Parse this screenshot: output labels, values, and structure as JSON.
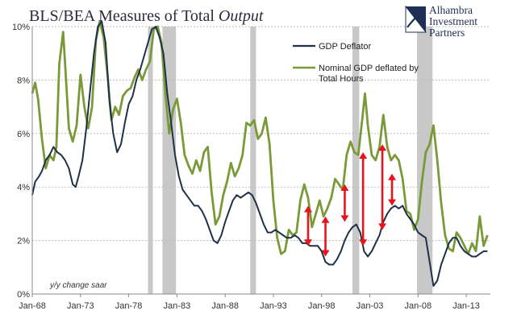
{
  "chart_data": {
    "type": "line",
    "title_main": "BLS/BEA Measures of Total ",
    "title_emph": "Output",
    "xlabel": "",
    "ylabel": "",
    "note": "y/y change saar",
    "ylim": [
      0,
      10
    ],
    "yticks": [
      "0%",
      "2%",
      "4%",
      "6%",
      "8%",
      "10%"
    ],
    "xlim": [
      1968.0,
      2015.5
    ],
    "xticks": [
      {
        "label": "Jan-68",
        "x": 1968
      },
      {
        "label": "Jan-73",
        "x": 1973
      },
      {
        "label": "Jan-78",
        "x": 1978
      },
      {
        "label": "Jan-83",
        "x": 1983
      },
      {
        "label": "Jan-88",
        "x": 1988
      },
      {
        "label": "Jan-93",
        "x": 1993
      },
      {
        "label": "Jan-98",
        "x": 1998
      },
      {
        "label": "Jan-03",
        "x": 2003
      },
      {
        "label": "Jan-08",
        "x": 2008
      },
      {
        "label": "Jan-13",
        "x": 2013
      }
    ],
    "grid": true,
    "legend_position": "top-right",
    "recessions": [
      [
        1980.0,
        1980.5
      ],
      [
        1981.5,
        1982.9
      ],
      [
        1990.6,
        1991.2
      ],
      [
        2001.2,
        2001.9
      ],
      [
        2007.9,
        2009.5
      ]
    ],
    "series": [
      {
        "name": "GDP Deflator",
        "color": "#1f3049",
        "points": [
          [
            1968.0,
            3.7
          ],
          [
            1968.3,
            4.2
          ],
          [
            1968.7,
            4.4
          ],
          [
            1969.0,
            4.6
          ],
          [
            1969.4,
            5.0
          ],
          [
            1969.8,
            5.2
          ],
          [
            1970.2,
            5.5
          ],
          [
            1970.6,
            5.3
          ],
          [
            1971.0,
            5.2
          ],
          [
            1971.4,
            5.0
          ],
          [
            1971.8,
            4.7
          ],
          [
            1972.2,
            4.1
          ],
          [
            1972.5,
            4.0
          ],
          [
            1972.8,
            4.4
          ],
          [
            1973.2,
            5.0
          ],
          [
            1973.6,
            6.2
          ],
          [
            1974.0,
            7.6
          ],
          [
            1974.4,
            9.0
          ],
          [
            1974.8,
            10.0
          ],
          [
            1975.2,
            10.2
          ],
          [
            1975.6,
            9.4
          ],
          [
            1976.0,
            7.2
          ],
          [
            1976.4,
            6.0
          ],
          [
            1976.8,
            5.3
          ],
          [
            1977.2,
            5.6
          ],
          [
            1977.6,
            6.4
          ],
          [
            1978.0,
            7.1
          ],
          [
            1978.4,
            7.4
          ],
          [
            1978.8,
            8.0
          ],
          [
            1979.2,
            8.4
          ],
          [
            1979.6,
            8.9
          ],
          [
            1980.0,
            9.4
          ],
          [
            1980.4,
            9.9
          ],
          [
            1980.8,
            10.0
          ],
          [
            1981.2,
            9.6
          ],
          [
            1981.6,
            9.0
          ],
          [
            1982.0,
            7.5
          ],
          [
            1982.4,
            6.4
          ],
          [
            1982.8,
            5.2
          ],
          [
            1983.2,
            4.4
          ],
          [
            1983.6,
            3.9
          ],
          [
            1984.0,
            3.7
          ],
          [
            1984.4,
            3.5
          ],
          [
            1984.8,
            3.3
          ],
          [
            1985.2,
            3.3
          ],
          [
            1985.6,
            3.1
          ],
          [
            1986.0,
            2.8
          ],
          [
            1986.4,
            2.4
          ],
          [
            1986.8,
            2.0
          ],
          [
            1987.2,
            1.9
          ],
          [
            1987.6,
            2.2
          ],
          [
            1988.0,
            2.7
          ],
          [
            1988.4,
            3.1
          ],
          [
            1988.8,
            3.5
          ],
          [
            1989.2,
            3.7
          ],
          [
            1989.6,
            3.6
          ],
          [
            1990.0,
            3.7
          ],
          [
            1990.4,
            3.8
          ],
          [
            1990.8,
            3.7
          ],
          [
            1991.2,
            3.4
          ],
          [
            1991.6,
            3.0
          ],
          [
            1992.0,
            2.6
          ],
          [
            1992.4,
            2.3
          ],
          [
            1992.8,
            2.3
          ],
          [
            1993.2,
            2.4
          ],
          [
            1993.6,
            2.3
          ],
          [
            1994.0,
            2.2
          ],
          [
            1994.4,
            2.1
          ],
          [
            1994.8,
            2.1
          ],
          [
            1995.2,
            2.2
          ],
          [
            1995.6,
            2.1
          ],
          [
            1996.0,
            1.9
          ],
          [
            1996.4,
            1.9
          ],
          [
            1996.8,
            1.8
          ],
          [
            1997.2,
            1.8
          ],
          [
            1997.6,
            1.8
          ],
          [
            1998.0,
            1.6
          ],
          [
            1998.4,
            1.2
          ],
          [
            1998.8,
            1.1
          ],
          [
            1999.2,
            1.1
          ],
          [
            1999.6,
            1.3
          ],
          [
            2000.0,
            1.6
          ],
          [
            2000.4,
            2.0
          ],
          [
            2000.8,
            2.3
          ],
          [
            2001.2,
            2.5
          ],
          [
            2001.6,
            2.6
          ],
          [
            2002.0,
            2.3
          ],
          [
            2002.4,
            1.6
          ],
          [
            2002.8,
            1.4
          ],
          [
            2003.2,
            1.6
          ],
          [
            2003.6,
            1.9
          ],
          [
            2004.0,
            2.2
          ],
          [
            2004.4,
            2.7
          ],
          [
            2004.8,
            3.0
          ],
          [
            2005.2,
            3.2
          ],
          [
            2005.6,
            3.3
          ],
          [
            2006.0,
            3.2
          ],
          [
            2006.4,
            3.3
          ],
          [
            2006.8,
            3.0
          ],
          [
            2007.2,
            2.8
          ],
          [
            2007.6,
            2.6
          ],
          [
            2008.0,
            2.3
          ],
          [
            2008.4,
            2.2
          ],
          [
            2008.8,
            2.1
          ],
          [
            2009.2,
            1.2
          ],
          [
            2009.6,
            0.3
          ],
          [
            2010.0,
            0.5
          ],
          [
            2010.4,
            1.1
          ],
          [
            2010.8,
            1.5
          ],
          [
            2011.2,
            1.9
          ],
          [
            2011.6,
            2.1
          ],
          [
            2012.0,
            2.1
          ],
          [
            2012.4,
            1.8
          ],
          [
            2012.8,
            1.6
          ],
          [
            2013.2,
            1.5
          ],
          [
            2013.6,
            1.4
          ],
          [
            2014.0,
            1.4
          ],
          [
            2014.4,
            1.5
          ],
          [
            2014.8,
            1.6
          ],
          [
            2015.2,
            1.6
          ]
        ]
      },
      {
        "name": "Nominal GDP deflated by Total Hours",
        "color": "#7a9a3a",
        "points": [
          [
            1968.0,
            7.5
          ],
          [
            1968.3,
            7.9
          ],
          [
            1968.6,
            7.3
          ],
          [
            1969.0,
            5.8
          ],
          [
            1969.4,
            4.7
          ],
          [
            1969.8,
            5.2
          ],
          [
            1970.2,
            5.0
          ],
          [
            1970.5,
            5.5
          ],
          [
            1970.8,
            8.6
          ],
          [
            1971.2,
            9.8
          ],
          [
            1971.5,
            8.0
          ],
          [
            1971.8,
            6.2
          ],
          [
            1972.2,
            5.7
          ],
          [
            1972.6,
            6.3
          ],
          [
            1973.0,
            8.2
          ],
          [
            1973.4,
            7.0
          ],
          [
            1973.8,
            6.2
          ],
          [
            1974.2,
            7.0
          ],
          [
            1974.6,
            9.5
          ],
          [
            1975.0,
            10.2
          ],
          [
            1975.4,
            9.6
          ],
          [
            1975.8,
            8.2
          ],
          [
            1976.2,
            6.5
          ],
          [
            1976.6,
            7.0
          ],
          [
            1977.0,
            6.7
          ],
          [
            1977.4,
            7.4
          ],
          [
            1977.8,
            7.6
          ],
          [
            1978.2,
            7.7
          ],
          [
            1978.6,
            8.1
          ],
          [
            1979.0,
            8.4
          ],
          [
            1979.4,
            8.0
          ],
          [
            1979.8,
            8.4
          ],
          [
            1980.2,
            8.7
          ],
          [
            1980.6,
            9.9
          ],
          [
            1981.0,
            10.0
          ],
          [
            1981.4,
            9.4
          ],
          [
            1981.8,
            7.5
          ],
          [
            1982.2,
            6.0
          ],
          [
            1982.6,
            6.9
          ],
          [
            1983.0,
            7.3
          ],
          [
            1983.4,
            6.4
          ],
          [
            1983.8,
            5.2
          ],
          [
            1984.2,
            4.8
          ],
          [
            1984.6,
            4.5
          ],
          [
            1985.0,
            5.0
          ],
          [
            1985.4,
            4.6
          ],
          [
            1985.8,
            5.3
          ],
          [
            1986.2,
            5.5
          ],
          [
            1986.6,
            3.8
          ],
          [
            1987.0,
            2.6
          ],
          [
            1987.4,
            2.9
          ],
          [
            1987.8,
            3.7
          ],
          [
            1988.2,
            4.2
          ],
          [
            1988.6,
            4.9
          ],
          [
            1989.0,
            4.4
          ],
          [
            1989.4,
            4.7
          ],
          [
            1989.8,
            5.2
          ],
          [
            1990.2,
            6.4
          ],
          [
            1990.6,
            6.3
          ],
          [
            1991.0,
            6.5
          ],
          [
            1991.4,
            5.8
          ],
          [
            1991.8,
            6.0
          ],
          [
            1992.2,
            6.6
          ],
          [
            1992.6,
            5.6
          ],
          [
            1993.0,
            3.5
          ],
          [
            1993.4,
            2.1
          ],
          [
            1993.8,
            1.5
          ],
          [
            1994.2,
            1.6
          ],
          [
            1994.6,
            2.4
          ],
          [
            1995.0,
            2.2
          ],
          [
            1995.4,
            2.3
          ],
          [
            1995.8,
            3.5
          ],
          [
            1996.2,
            4.1
          ],
          [
            1996.6,
            3.6
          ],
          [
            1997.0,
            2.5
          ],
          [
            1997.4,
            3.0
          ],
          [
            1997.8,
            3.5
          ],
          [
            1998.2,
            2.9
          ],
          [
            1998.6,
            3.2
          ],
          [
            1999.0,
            3.6
          ],
          [
            1999.4,
            4.3
          ],
          [
            1999.8,
            4.1
          ],
          [
            2000.2,
            3.9
          ],
          [
            2000.6,
            5.2
          ],
          [
            2001.0,
            5.7
          ],
          [
            2001.4,
            5.3
          ],
          [
            2001.8,
            5.2
          ],
          [
            2002.2,
            6.5
          ],
          [
            2002.5,
            7.5
          ],
          [
            2002.8,
            6.3
          ],
          [
            2003.2,
            5.2
          ],
          [
            2003.6,
            5.0
          ],
          [
            2004.0,
            5.5
          ],
          [
            2004.4,
            6.7
          ],
          [
            2004.8,
            5.5
          ],
          [
            2005.2,
            5.0
          ],
          [
            2005.6,
            5.2
          ],
          [
            2006.0,
            5.0
          ],
          [
            2006.4,
            4.3
          ],
          [
            2006.8,
            3.1
          ],
          [
            2007.2,
            3.0
          ],
          [
            2007.6,
            2.4
          ],
          [
            2008.0,
            2.8
          ],
          [
            2008.4,
            4.2
          ],
          [
            2008.8,
            5.3
          ],
          [
            2009.2,
            5.6
          ],
          [
            2009.6,
            6.3
          ],
          [
            2010.0,
            5.0
          ],
          [
            2010.4,
            3.4
          ],
          [
            2010.8,
            2.2
          ],
          [
            2011.2,
            1.7
          ],
          [
            2011.6,
            1.6
          ],
          [
            2012.0,
            2.3
          ],
          [
            2012.4,
            2.1
          ],
          [
            2012.8,
            1.8
          ],
          [
            2013.2,
            1.5
          ],
          [
            2013.6,
            1.9
          ],
          [
            2014.0,
            1.6
          ],
          [
            2014.4,
            2.9
          ],
          [
            2014.8,
            1.8
          ],
          [
            2015.2,
            2.2
          ]
        ]
      }
    ],
    "annotations": [
      {
        "x": 1996.6,
        "y1": 3.3,
        "y2": 1.8,
        "color": "#e8141c"
      },
      {
        "x": 1998.4,
        "y1": 2.9,
        "y2": 1.4,
        "color": "#e8141c"
      },
      {
        "x": 2000.4,
        "y1": 4.1,
        "y2": 2.7,
        "color": "#e8141c"
      },
      {
        "x": 2002.3,
        "y1": 5.3,
        "y2": 1.8,
        "color": "#e8141c"
      },
      {
        "x": 2004.3,
        "y1": 5.6,
        "y2": 2.4,
        "color": "#e8141c"
      },
      {
        "x": 2005.3,
        "y1": 4.5,
        "y2": 3.3,
        "color": "#e8141c"
      }
    ]
  },
  "brand": {
    "line1": "Alhambra",
    "line2": "Investment",
    "line3": "Partners",
    "color": "#1f2f55"
  },
  "colors": {
    "recession": "#c8c8c8",
    "grid": "#bdbdbd",
    "axis": "#888888"
  }
}
